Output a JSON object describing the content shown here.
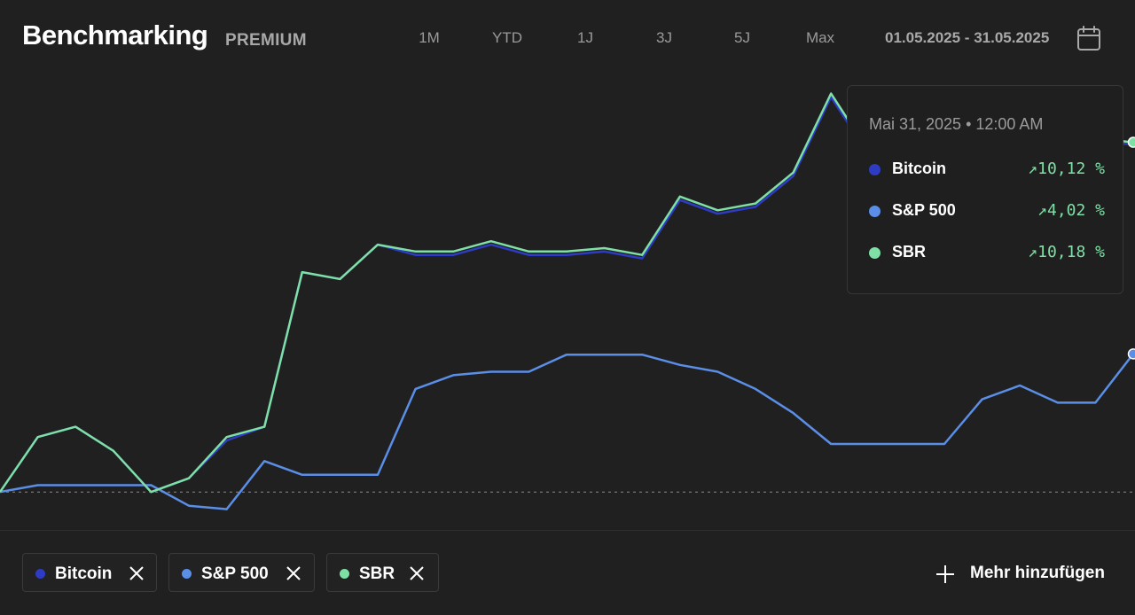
{
  "header": {
    "title": "Benchmarking",
    "badge": "PREMIUM",
    "ranges": [
      "1M",
      "YTD",
      "1J",
      "3J",
      "5J",
      "Max"
    ],
    "date_range": "01.05.2025 - 31.05.2025"
  },
  "tooltip": {
    "date": "Mai 31, 2025 • 12:00 AM",
    "rows": [
      {
        "name": "Bitcoin",
        "value": "↗10,12 %",
        "color": "#2e3bc4"
      },
      {
        "name": "S&P 500",
        "value": "↗4,02 %",
        "color": "#5b8ee6"
      },
      {
        "name": "SBR",
        "value": "↗10,18 %",
        "color": "#7fe0a6"
      }
    ]
  },
  "chips": [
    {
      "label": "Bitcoin",
      "color": "#2e3bc4"
    },
    {
      "label": "S&P 500",
      "color": "#5b8ee6"
    },
    {
      "label": "SBR",
      "color": "#7fe0a6"
    }
  ],
  "add_button": {
    "label": "Mehr hinzufügen",
    "icon": "plus-icon"
  },
  "chart_data": {
    "type": "line",
    "x": [
      "01.05.2025",
      "02.05.2025",
      "03.05.2025",
      "04.05.2025",
      "05.05.2025",
      "06.05.2025",
      "07.05.2025",
      "08.05.2025",
      "09.05.2025",
      "10.05.2025",
      "11.05.2025",
      "12.05.2025",
      "13.05.2025",
      "14.05.2025",
      "15.05.2025",
      "16.05.2025",
      "17.05.2025",
      "18.05.2025",
      "19.05.2025",
      "20.05.2025",
      "21.05.2025",
      "22.05.2025",
      "23.05.2025",
      "24.05.2025",
      "25.05.2025",
      "26.05.2025",
      "27.05.2025",
      "28.05.2025",
      "29.05.2025",
      "30.05.2025",
      "31.05.2025"
    ],
    "ylim": [
      -1.0,
      12.0
    ],
    "baseline": 0,
    "grid": false,
    "series": [
      {
        "name": "Bitcoin",
        "color": "#2e3bc4",
        "values": [
          0.0,
          1.6,
          1.9,
          1.2,
          0.0,
          0.4,
          1.5,
          1.9,
          6.4,
          6.2,
          7.2,
          6.9,
          6.9,
          7.2,
          6.9,
          6.9,
          7.0,
          6.8,
          8.5,
          8.1,
          8.3,
          9.2,
          11.5,
          9.8,
          10.8,
          10.5,
          10.4,
          10.3,
          10.3,
          10.2,
          10.12
        ]
      },
      {
        "name": "S&P 500",
        "color": "#5b8ee6",
        "values": [
          0.0,
          0.2,
          0.2,
          0.2,
          0.2,
          -0.4,
          -0.5,
          0.9,
          0.5,
          0.5,
          0.5,
          3.0,
          3.4,
          3.5,
          3.5,
          4.0,
          4.0,
          4.0,
          3.7,
          3.5,
          3.0,
          2.3,
          1.4,
          1.4,
          1.4,
          1.4,
          2.7,
          3.1,
          2.6,
          2.6,
          4.02
        ]
      },
      {
        "name": "SBR",
        "color": "#7fe0a6",
        "values": [
          0.0,
          1.6,
          1.9,
          1.2,
          0.0,
          0.4,
          1.6,
          1.9,
          6.4,
          6.2,
          7.2,
          7.0,
          7.0,
          7.3,
          7.0,
          7.0,
          7.1,
          6.9,
          8.6,
          8.2,
          8.4,
          9.3,
          11.6,
          9.9,
          10.9,
          10.6,
          10.5,
          10.4,
          10.4,
          10.3,
          10.18
        ]
      }
    ]
  }
}
